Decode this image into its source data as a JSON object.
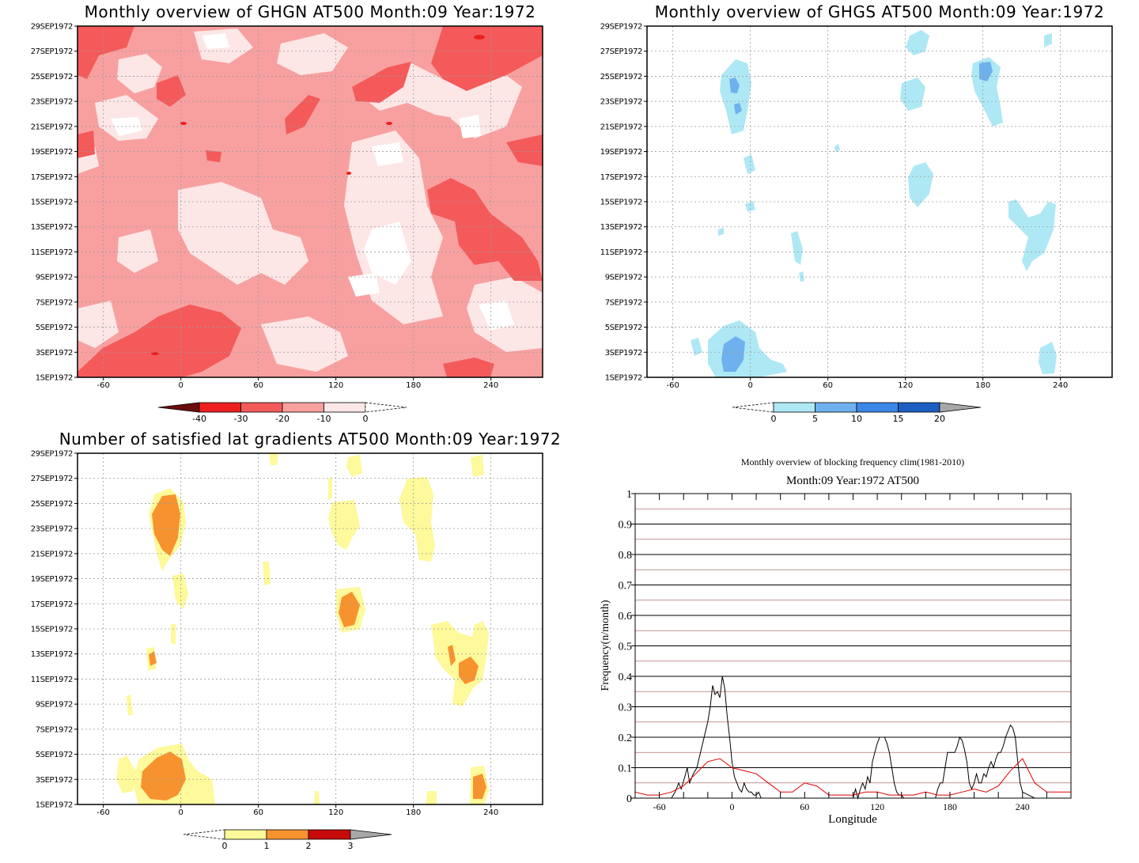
{
  "panels": [
    {
      "title": "Monthly overview of GHGN AT500 Month:09 Year:1972",
      "y_ticks": [
        "29SEP1972",
        "27SEP1972",
        "25SEP1972",
        "23SEP1972",
        "21SEP1972",
        "19SEP1972",
        "17SEP1972",
        "15SEP1972",
        "13SEP1972",
        "11SEP1972",
        "9SEP1972",
        "7SEP1972",
        "5SEP1972",
        "3SEP1972",
        "1SEP1972"
      ],
      "x_ticks": [
        "-60",
        "0",
        "60",
        "120",
        "180",
        "240"
      ],
      "colorbar": {
        "labels": [
          "-40",
          "-30",
          "-20",
          "-10",
          "0"
        ],
        "colors": [
          "#6b0d0d",
          "#ee1f1f",
          "#f45a5a",
          "#f8a0a0",
          "#fde6e6",
          "#ffffff"
        ]
      }
    },
    {
      "title": "Monthly overview of GHGS AT500 Month:09 Year:1972",
      "y_ticks": [
        "29SEP1972",
        "27SEP1972",
        "25SEP1972",
        "23SEP1972",
        "21SEP1972",
        "19SEP1972",
        "17SEP1972",
        "15SEP1972",
        "13SEP1972",
        "11SEP1972",
        "9SEP1972",
        "7SEP1972",
        "5SEP1972",
        "3SEP1972",
        "1SEP1972"
      ],
      "x_ticks": [
        "-60",
        "0",
        "60",
        "120",
        "180",
        "240"
      ],
      "colorbar": {
        "labels": [
          "0",
          "5",
          "10",
          "15",
          "20"
        ],
        "colors": [
          "#ffffff",
          "#aee8f5",
          "#6fb1ee",
          "#3b86e6",
          "#1d5ec2",
          "#a8a8a8"
        ]
      }
    },
    {
      "title": "Number of satisfied lat gradients AT500 Month:09 Year:1972",
      "y_ticks": [
        "29SEP1972",
        "27SEP1972",
        "25SEP1972",
        "23SEP1972",
        "21SEP1972",
        "19SEP1972",
        "17SEP1972",
        "15SEP1972",
        "13SEP1972",
        "11SEP1972",
        "9SEP1972",
        "7SEP1972",
        "5SEP1972",
        "3SEP1972",
        "1SEP1972"
      ],
      "x_ticks": [
        "-60",
        "0",
        "60",
        "120",
        "180",
        "240"
      ],
      "colorbar": {
        "labels": [
          "0",
          "1",
          "2",
          "3"
        ],
        "colors": [
          "#ffffff",
          "#fef99a",
          "#f7932f",
          "#c80a0a",
          "#a8a8a8"
        ]
      }
    }
  ],
  "chart_data": {
    "type": "line",
    "title": "Monthly overview of blocking frequency clim(1981-2010)",
    "subtitle": "Month:09 Year:1972  AT500",
    "xlabel": "Longitude",
    "ylabel": "Frequency(n/month)",
    "x_ticks": [
      "-60",
      "0",
      "60",
      "120",
      "180",
      "240"
    ],
    "y_ticks": [
      "0",
      "0.1",
      "0.2",
      "0.3",
      "0.4",
      "0.5",
      "0.6",
      "0.7",
      "0.8",
      "0.9",
      "1"
    ],
    "xlim": [
      -80,
      280
    ],
    "ylim": [
      0,
      1
    ],
    "series": [
      {
        "color": "#000000",
        "x": [
          -80,
          -50,
          -47,
          -44,
          -42,
          -39,
          -37,
          -35,
          -32,
          -29,
          -26,
          -23,
          -20,
          -18,
          -16,
          -14,
          -12,
          -10,
          -8,
          -6,
          -4,
          -2,
          0,
          2,
          4,
          6,
          8,
          10,
          12,
          14,
          16,
          18,
          20,
          22,
          24,
          40,
          80,
          100,
          102,
          104,
          106,
          108,
          110,
          112,
          114,
          116,
          118,
          120,
          122,
          124,
          126,
          128,
          130,
          132,
          134,
          136,
          138,
          140,
          142,
          160,
          168,
          170,
          172,
          174,
          176,
          178,
          180,
          182,
          184,
          186,
          188,
          190,
          192,
          194,
          196,
          198,
          200,
          202,
          204,
          206,
          208,
          210,
          212,
          214,
          216,
          218,
          220,
          222,
          224,
          226,
          228,
          230,
          232,
          234,
          236,
          238,
          240,
          250,
          280
        ],
        "y": [
          0,
          0,
          0.02,
          0.05,
          0.03,
          0.07,
          0.1,
          0.05,
          0.08,
          0.1,
          0.15,
          0.2,
          0.25,
          0.3,
          0.37,
          0.34,
          0.35,
          0.33,
          0.4,
          0.36,
          0.27,
          0.2,
          0.12,
          0.07,
          0.05,
          0.03,
          0.02,
          0.05,
          0.03,
          0.02,
          0.02,
          0.01,
          0.01,
          0.02,
          0,
          0,
          0,
          0,
          0.03,
          0,
          0.03,
          0.05,
          0.03,
          0.07,
          0.05,
          0.12,
          0.15,
          0.18,
          0.2,
          0.2,
          0.2,
          0.18,
          0.15,
          0.1,
          0.05,
          0.02,
          0.01,
          0.01,
          0,
          0,
          0,
          0.03,
          0.05,
          0.05,
          0.1,
          0.15,
          0.15,
          0.15,
          0.15,
          0.17,
          0.2,
          0.19,
          0.16,
          0.12,
          0.05,
          0.03,
          0.05,
          0.08,
          0.05,
          0.05,
          0.08,
          0.07,
          0.1,
          0.12,
          0.1,
          0.13,
          0.15,
          0.15,
          0.17,
          0.2,
          0.22,
          0.24,
          0.23,
          0.2,
          0.12,
          0.05,
          0.02,
          0,
          0
        ]
      },
      {
        "color": "#e00000",
        "x": [
          -80,
          -70,
          -60,
          -50,
          -40,
          -30,
          -20,
          -10,
          0,
          10,
          20,
          30,
          40,
          50,
          60,
          70,
          80,
          90,
          100,
          110,
          120,
          130,
          140,
          150,
          160,
          170,
          180,
          190,
          200,
          210,
          220,
          230,
          240,
          250,
          260,
          270,
          280
        ],
        "y": [
          0.02,
          0.01,
          0.01,
          0.02,
          0.04,
          0.08,
          0.12,
          0.13,
          0.1,
          0.09,
          0.08,
          0.05,
          0.02,
          0.02,
          0.05,
          0.04,
          0.01,
          0.01,
          0.01,
          0.02,
          0.02,
          0.01,
          0.01,
          0.01,
          0.02,
          0.01,
          0.01,
          0.02,
          0.03,
          0.02,
          0.04,
          0.09,
          0.13,
          0.05,
          0.02,
          0.02,
          0.02
        ]
      }
    ]
  }
}
